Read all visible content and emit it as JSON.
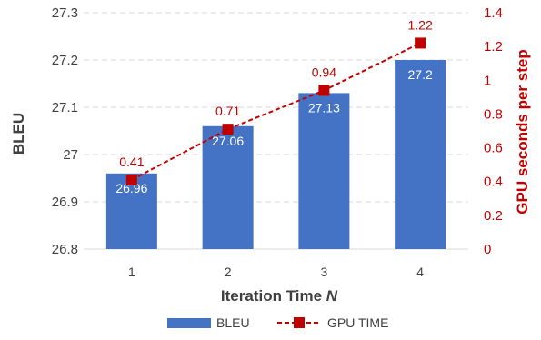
{
  "chart_data": {
    "type": "bar",
    "categories": [
      "1",
      "2",
      "3",
      "4"
    ],
    "xlabel_main": "Iteration Time ",
    "xlabel_var": "N",
    "ylabel": "BLEU",
    "y2label": "GPU seconds per step",
    "ylim": [
      26.8,
      27.3
    ],
    "y2lim": [
      0,
      1.4
    ],
    "yticks": [
      "26.8",
      "26.9",
      "27",
      "27.1",
      "27.2",
      "27.3"
    ],
    "y2ticks": [
      "0",
      "0.2",
      "0.4",
      "0.6",
      "0.8",
      "1",
      "1.2",
      "1.4"
    ],
    "grid": true,
    "legend_position": "bottom",
    "series": [
      {
        "name": "BLEU",
        "type": "bar",
        "axis": "left",
        "color": "#4472c4",
        "values": [
          26.96,
          27.06,
          27.13,
          27.2
        ],
        "labels": [
          "26.96",
          "27.06",
          "27.13",
          "27.2"
        ]
      },
      {
        "name": "GPU TIME",
        "type": "line",
        "axis": "right",
        "color": "#c00000",
        "line_style": "dashed",
        "marker": "square",
        "values": [
          0.41,
          0.71,
          0.94,
          1.22
        ],
        "labels": [
          "0.41",
          "0.71",
          "0.94",
          "1.22"
        ]
      }
    ]
  }
}
